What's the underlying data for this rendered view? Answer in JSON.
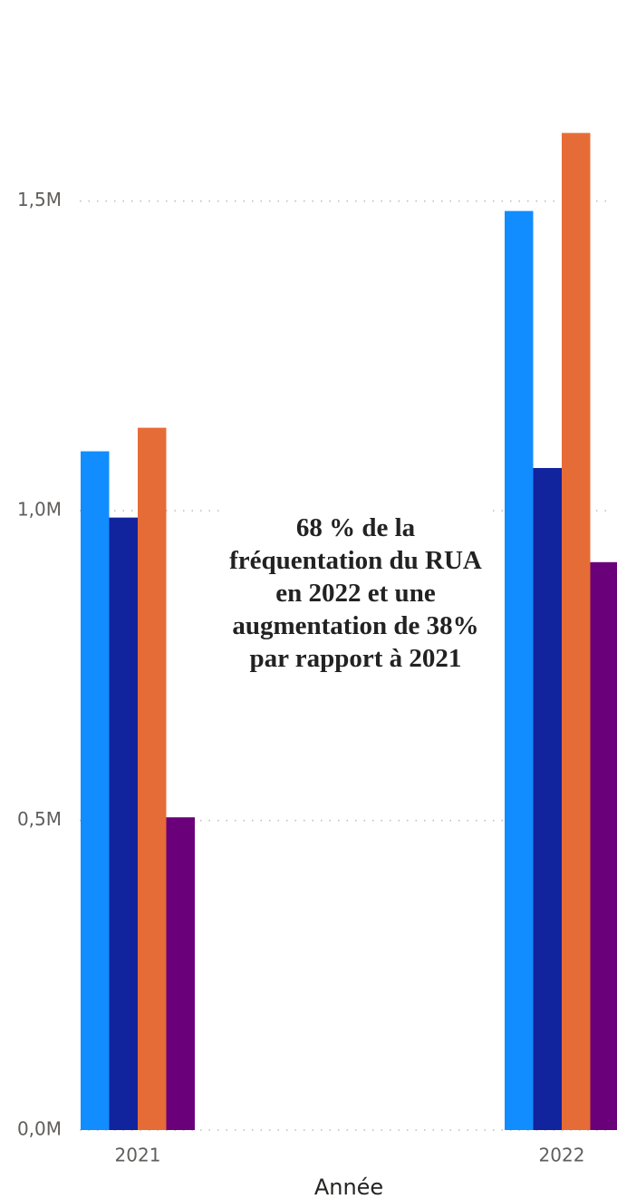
{
  "chart_data": {
    "type": "bar",
    "x_label": "Année",
    "annotation": "68 % de la fréquentation du RUA en 2022 et une augmentation de 38% par rapport à 2021",
    "categories": [
      "2021",
      "2022"
    ],
    "series": [
      {
        "color": "#118dff",
        "values": [
          1096000,
          1484000
        ]
      },
      {
        "color": "#12239e",
        "values": [
          989000,
          1069000
        ]
      },
      {
        "color": "#e66c37",
        "values": [
          1134000,
          1610000
        ]
      },
      {
        "color": "#6b007b",
        "values": [
          505000,
          917000
        ]
      }
    ],
    "ylim": [
      0,
      1750000
    ],
    "yticks": [
      {
        "value": 0,
        "label": "0,0M"
      },
      {
        "value": 500000,
        "label": "0,5M"
      },
      {
        "value": 1000000,
        "label": "1,0M"
      },
      {
        "value": 1500000,
        "label": "1,5M"
      }
    ],
    "grid": true
  }
}
